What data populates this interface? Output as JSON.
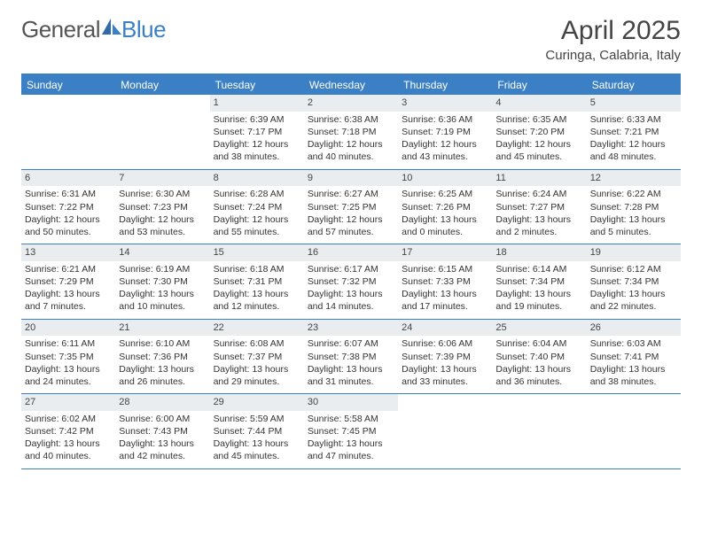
{
  "logo": {
    "text_general": "General",
    "text_blue": "Blue"
  },
  "header": {
    "month_title": "April 2025",
    "location": "Curinga, Calabria, Italy"
  },
  "colors": {
    "accent": "#3b7fc4",
    "daynum_bg": "#e9edf0",
    "text": "#333333",
    "background": "#ffffff"
  },
  "dow": [
    "Sunday",
    "Monday",
    "Tuesday",
    "Wednesday",
    "Thursday",
    "Friday",
    "Saturday"
  ],
  "weeks": [
    [
      null,
      null,
      {
        "n": "1",
        "sr": "Sunrise: 6:39 AM",
        "ss": "Sunset: 7:17 PM",
        "dl": "Daylight: 12 hours and 38 minutes."
      },
      {
        "n": "2",
        "sr": "Sunrise: 6:38 AM",
        "ss": "Sunset: 7:18 PM",
        "dl": "Daylight: 12 hours and 40 minutes."
      },
      {
        "n": "3",
        "sr": "Sunrise: 6:36 AM",
        "ss": "Sunset: 7:19 PM",
        "dl": "Daylight: 12 hours and 43 minutes."
      },
      {
        "n": "4",
        "sr": "Sunrise: 6:35 AM",
        "ss": "Sunset: 7:20 PM",
        "dl": "Daylight: 12 hours and 45 minutes."
      },
      {
        "n": "5",
        "sr": "Sunrise: 6:33 AM",
        "ss": "Sunset: 7:21 PM",
        "dl": "Daylight: 12 hours and 48 minutes."
      }
    ],
    [
      {
        "n": "6",
        "sr": "Sunrise: 6:31 AM",
        "ss": "Sunset: 7:22 PM",
        "dl": "Daylight: 12 hours and 50 minutes."
      },
      {
        "n": "7",
        "sr": "Sunrise: 6:30 AM",
        "ss": "Sunset: 7:23 PM",
        "dl": "Daylight: 12 hours and 53 minutes."
      },
      {
        "n": "8",
        "sr": "Sunrise: 6:28 AM",
        "ss": "Sunset: 7:24 PM",
        "dl": "Daylight: 12 hours and 55 minutes."
      },
      {
        "n": "9",
        "sr": "Sunrise: 6:27 AM",
        "ss": "Sunset: 7:25 PM",
        "dl": "Daylight: 12 hours and 57 minutes."
      },
      {
        "n": "10",
        "sr": "Sunrise: 6:25 AM",
        "ss": "Sunset: 7:26 PM",
        "dl": "Daylight: 13 hours and 0 minutes."
      },
      {
        "n": "11",
        "sr": "Sunrise: 6:24 AM",
        "ss": "Sunset: 7:27 PM",
        "dl": "Daylight: 13 hours and 2 minutes."
      },
      {
        "n": "12",
        "sr": "Sunrise: 6:22 AM",
        "ss": "Sunset: 7:28 PM",
        "dl": "Daylight: 13 hours and 5 minutes."
      }
    ],
    [
      {
        "n": "13",
        "sr": "Sunrise: 6:21 AM",
        "ss": "Sunset: 7:29 PM",
        "dl": "Daylight: 13 hours and 7 minutes."
      },
      {
        "n": "14",
        "sr": "Sunrise: 6:19 AM",
        "ss": "Sunset: 7:30 PM",
        "dl": "Daylight: 13 hours and 10 minutes."
      },
      {
        "n": "15",
        "sr": "Sunrise: 6:18 AM",
        "ss": "Sunset: 7:31 PM",
        "dl": "Daylight: 13 hours and 12 minutes."
      },
      {
        "n": "16",
        "sr": "Sunrise: 6:17 AM",
        "ss": "Sunset: 7:32 PM",
        "dl": "Daylight: 13 hours and 14 minutes."
      },
      {
        "n": "17",
        "sr": "Sunrise: 6:15 AM",
        "ss": "Sunset: 7:33 PM",
        "dl": "Daylight: 13 hours and 17 minutes."
      },
      {
        "n": "18",
        "sr": "Sunrise: 6:14 AM",
        "ss": "Sunset: 7:34 PM",
        "dl": "Daylight: 13 hours and 19 minutes."
      },
      {
        "n": "19",
        "sr": "Sunrise: 6:12 AM",
        "ss": "Sunset: 7:34 PM",
        "dl": "Daylight: 13 hours and 22 minutes."
      }
    ],
    [
      {
        "n": "20",
        "sr": "Sunrise: 6:11 AM",
        "ss": "Sunset: 7:35 PM",
        "dl": "Daylight: 13 hours and 24 minutes."
      },
      {
        "n": "21",
        "sr": "Sunrise: 6:10 AM",
        "ss": "Sunset: 7:36 PM",
        "dl": "Daylight: 13 hours and 26 minutes."
      },
      {
        "n": "22",
        "sr": "Sunrise: 6:08 AM",
        "ss": "Sunset: 7:37 PM",
        "dl": "Daylight: 13 hours and 29 minutes."
      },
      {
        "n": "23",
        "sr": "Sunrise: 6:07 AM",
        "ss": "Sunset: 7:38 PM",
        "dl": "Daylight: 13 hours and 31 minutes."
      },
      {
        "n": "24",
        "sr": "Sunrise: 6:06 AM",
        "ss": "Sunset: 7:39 PM",
        "dl": "Daylight: 13 hours and 33 minutes."
      },
      {
        "n": "25",
        "sr": "Sunrise: 6:04 AM",
        "ss": "Sunset: 7:40 PM",
        "dl": "Daylight: 13 hours and 36 minutes."
      },
      {
        "n": "26",
        "sr": "Sunrise: 6:03 AM",
        "ss": "Sunset: 7:41 PM",
        "dl": "Daylight: 13 hours and 38 minutes."
      }
    ],
    [
      {
        "n": "27",
        "sr": "Sunrise: 6:02 AM",
        "ss": "Sunset: 7:42 PM",
        "dl": "Daylight: 13 hours and 40 minutes."
      },
      {
        "n": "28",
        "sr": "Sunrise: 6:00 AM",
        "ss": "Sunset: 7:43 PM",
        "dl": "Daylight: 13 hours and 42 minutes."
      },
      {
        "n": "29",
        "sr": "Sunrise: 5:59 AM",
        "ss": "Sunset: 7:44 PM",
        "dl": "Daylight: 13 hours and 45 minutes."
      },
      {
        "n": "30",
        "sr": "Sunrise: 5:58 AM",
        "ss": "Sunset: 7:45 PM",
        "dl": "Daylight: 13 hours and 47 minutes."
      },
      null,
      null,
      null
    ]
  ]
}
